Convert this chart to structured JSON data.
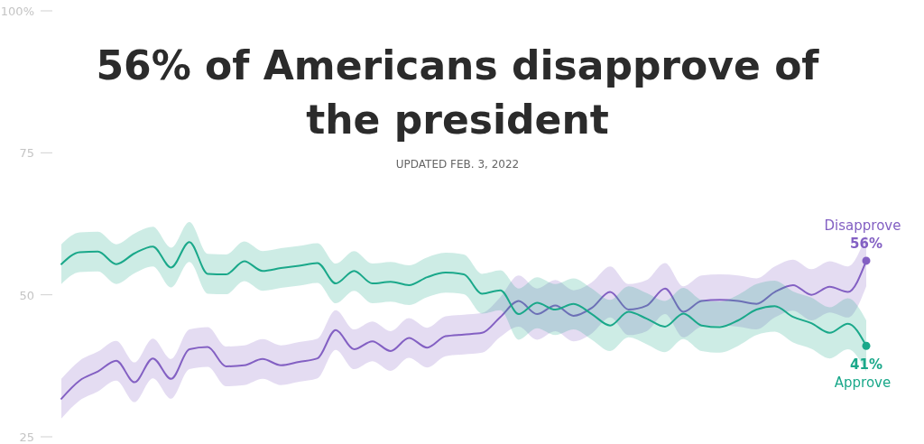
{
  "chart_data": {
    "type": "line",
    "title": "56% of Americans disapprove of the president",
    "annotations": [
      "UPDATED FEB. 3, 2022"
    ],
    "categories": [
      null,
      null,
      null,
      null,
      null,
      null,
      null,
      null,
      null,
      null,
      null,
      null,
      null,
      null,
      null,
      null,
      null,
      null,
      null,
      null,
      null,
      null,
      null,
      null,
      null,
      null,
      null,
      null,
      null,
      null,
      null,
      null,
      null,
      null,
      null,
      null,
      null,
      null,
      null,
      null,
      null,
      null,
      null,
      null,
      null
    ],
    "ylim": [
      25,
      100
    ],
    "yticks": [
      {
        "value": 100,
        "label": "100%"
      },
      75,
      50,
      25
    ],
    "grid": false,
    "legend": false,
    "marker": "none",
    "line_style": "solid",
    "tick_labels": "y",
    "series": [
      {
        "name": "Disapprove",
        "color": "#8360c3",
        "values": [
          31.7,
          34.9,
          36.5,
          38.4,
          34.6,
          38.8,
          35.2,
          40.4,
          40.8,
          37.4,
          37.6,
          38.7,
          37.6,
          38.2,
          38.8,
          43.8,
          40.4,
          41.8,
          40.1,
          42.4,
          40.7,
          42.7,
          43.0,
          43.3,
          46.1,
          48.9,
          46.6,
          48.1,
          46.3,
          47.7,
          50.5,
          47.4,
          48.1,
          51.1,
          47.0,
          48.9,
          49.1,
          48.9,
          48.4,
          50.5,
          51.7,
          50.0,
          51.4,
          50.5,
          56
        ],
        "lower": [
          28.2,
          31.4,
          33.0,
          34.9,
          31.1,
          35.3,
          31.7,
          36.9,
          37.3,
          33.9,
          34.1,
          35.2,
          34.1,
          34.7,
          35.3,
          40.3,
          36.9,
          38.3,
          36.6,
          38.9,
          37.2,
          39.2,
          39.5,
          39.8,
          42.6,
          44.4,
          42.1,
          43.6,
          41.8,
          43.2,
          46.0,
          42.9,
          43.6,
          46.6,
          42.5,
          44.4,
          44.6,
          44.4,
          43.9,
          46.0,
          47.2,
          45.5,
          46.9,
          46.0,
          51.5
        ],
        "upper": [
          35.2,
          38.4,
          40.0,
          41.9,
          38.1,
          42.3,
          38.7,
          43.9,
          44.3,
          40.9,
          41.1,
          42.2,
          41.1,
          41.7,
          42.3,
          47.3,
          43.9,
          45.3,
          43.6,
          45.9,
          44.2,
          46.2,
          46.5,
          46.8,
          49.6,
          53.4,
          51.1,
          52.6,
          50.8,
          52.2,
          55.0,
          51.9,
          52.6,
          55.6,
          51.5,
          53.4,
          53.6,
          53.4,
          52.9,
          55.0,
          56.2,
          54.5,
          55.9,
          55.0,
          60.5
        ],
        "value_labels": [
          null,
          null,
          null,
          null,
          null,
          null,
          null,
          null,
          null,
          null,
          null,
          null,
          null,
          null,
          null,
          null,
          null,
          null,
          null,
          null,
          null,
          null,
          null,
          null,
          null,
          null,
          null,
          null,
          null,
          null,
          null,
          null,
          null,
          null,
          null,
          null,
          null,
          null,
          null,
          null,
          null,
          null,
          null,
          null,
          "56%"
        ]
      },
      {
        "name": "Approve",
        "color": "#1aa88a",
        "values": [
          55.4,
          57.5,
          57.6,
          55.4,
          57.3,
          58.5,
          54.8,
          59.3,
          53.7,
          53.6,
          55.9,
          54.2,
          54.7,
          55.1,
          55.6,
          52.0,
          54.2,
          52.0,
          52.3,
          51.7,
          53.1,
          53.9,
          53.6,
          50.2,
          50.8,
          46.6,
          48.6,
          47.4,
          48.4,
          46.6,
          44.6,
          47.0,
          45.8,
          44.4,
          46.7,
          44.6,
          44.3,
          45.5,
          47.4,
          48.0,
          46.1,
          45.0,
          43.3,
          44.9,
          41
        ],
        "lower": [
          51.9,
          54.0,
          54.1,
          51.9,
          53.8,
          55.0,
          51.3,
          55.8,
          50.2,
          50.1,
          52.4,
          50.7,
          51.2,
          51.6,
          52.1,
          48.5,
          50.7,
          48.5,
          48.8,
          48.2,
          49.6,
          50.4,
          50.1,
          46.7,
          47.3,
          42.1,
          44.1,
          42.9,
          43.9,
          42.1,
          40.1,
          42.5,
          41.3,
          39.9,
          42.2,
          40.1,
          39.8,
          41.0,
          42.9,
          43.5,
          41.6,
          40.5,
          38.8,
          40.4,
          36.5
        ],
        "upper": [
          58.9,
          61.0,
          61.1,
          58.9,
          60.8,
          62.0,
          58.3,
          62.8,
          57.2,
          57.1,
          59.4,
          57.7,
          58.2,
          58.6,
          59.1,
          55.5,
          57.7,
          55.5,
          55.8,
          55.2,
          56.6,
          57.4,
          57.1,
          53.7,
          54.3,
          51.1,
          53.1,
          51.9,
          52.9,
          51.1,
          49.1,
          51.5,
          50.3,
          48.9,
          51.2,
          49.1,
          48.8,
          50.0,
          51.9,
          52.5,
          50.6,
          49.5,
          47.8,
          49.4,
          45.5
        ],
        "value_labels": [
          null,
          null,
          null,
          null,
          null,
          null,
          null,
          null,
          null,
          null,
          null,
          null,
          null,
          null,
          null,
          null,
          null,
          null,
          null,
          null,
          null,
          null,
          null,
          null,
          null,
          null,
          null,
          null,
          null,
          null,
          null,
          null,
          null,
          null,
          null,
          null,
          null,
          null,
          null,
          null,
          null,
          null,
          null,
          null,
          "41%"
        ]
      }
    ]
  }
}
